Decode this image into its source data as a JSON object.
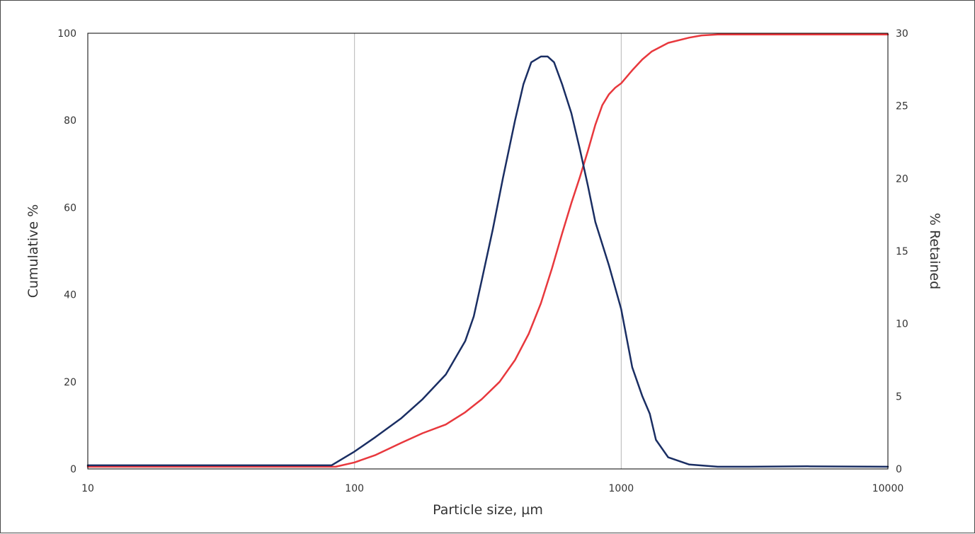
{
  "chart_data": {
    "type": "line",
    "title": "",
    "xlabel": "Particle size, µm",
    "ylabel": "Cumulative %",
    "y2label": "% Retained",
    "x_scale": "log",
    "xlim": [
      10,
      10000
    ],
    "ylim": [
      0,
      100
    ],
    "y2lim": [
      0,
      30
    ],
    "x_ticks": [
      "10",
      "100",
      "1000",
      "10000"
    ],
    "y_ticks": [
      "0",
      "20",
      "40",
      "60",
      "80",
      "100"
    ],
    "y2_ticks": [
      "0",
      "5",
      "10",
      "15",
      "20",
      "25",
      "30"
    ],
    "grid": "vertical lines at 100 and 1000",
    "legend": "none",
    "series": [
      {
        "axis": "left",
        "color": "#e8383d",
        "x": [
          10,
          50,
          85,
          100,
          120,
          150,
          180,
          220,
          260,
          300,
          350,
          400,
          450,
          500,
          550,
          600,
          650,
          700,
          750,
          800,
          850,
          900,
          950,
          1000,
          1100,
          1200,
          1300,
          1500,
          1800,
          2000,
          2300,
          3000,
          5000,
          10000
        ],
        "values": [
          0.5,
          0.5,
          0.5,
          1.5,
          3.2,
          6.0,
          8.2,
          10.2,
          13.0,
          16.0,
          20.0,
          25.0,
          31.0,
          38.0,
          46.0,
          54.0,
          61.0,
          67.0,
          73.0,
          79.0,
          83.5,
          86.0,
          87.5,
          88.5,
          91.5,
          94.0,
          95.8,
          97.8,
          99.0,
          99.5,
          99.7,
          99.7,
          99.7,
          99.7
        ]
      },
      {
        "axis": "right",
        "color": "#1a2e63",
        "x": [
          10,
          50,
          82,
          100,
          120,
          150,
          180,
          220,
          260,
          280,
          300,
          330,
          360,
          400,
          430,
          460,
          500,
          530,
          560,
          600,
          650,
          700,
          750,
          800,
          900,
          1000,
          1100,
          1200,
          1280,
          1350,
          1500,
          1800,
          2300,
          3000,
          5000,
          10000
        ],
        "values": [
          0.25,
          0.25,
          0.25,
          1.2,
          2.2,
          3.5,
          4.8,
          6.5,
          8.8,
          10.5,
          13.0,
          16.5,
          20.0,
          24.0,
          26.5,
          28.0,
          28.4,
          28.4,
          28.0,
          26.5,
          24.5,
          22.0,
          19.5,
          17.0,
          14.0,
          11.0,
          7.0,
          5.0,
          3.8,
          2.0,
          0.8,
          0.3,
          0.15,
          0.15,
          0.18,
          0.15
        ]
      }
    ]
  }
}
